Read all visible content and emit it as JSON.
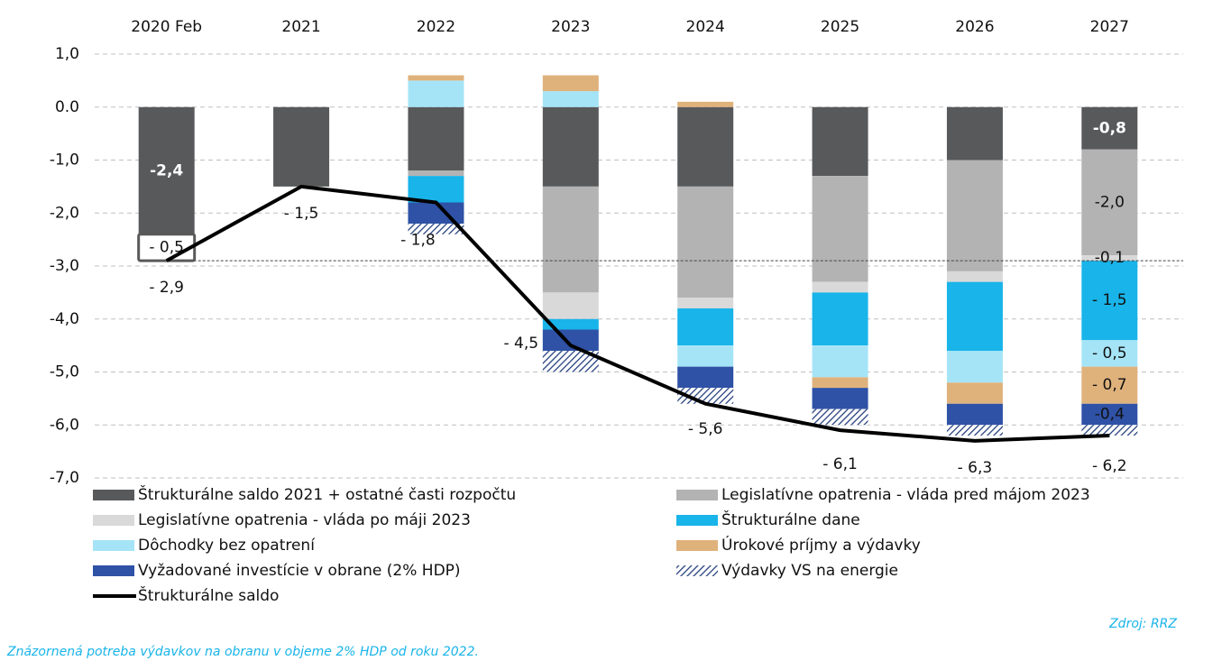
{
  "chart_data": {
    "type": "stacked-bar-line",
    "categories": [
      "2020 Feb",
      "2021",
      "2022",
      "2023",
      "2024",
      "2025",
      "2026",
      "2027"
    ],
    "ylim": [
      -7,
      1
    ],
    "yticks": [
      {
        "value": 1,
        "label": "1,0"
      },
      {
        "value": 0,
        "label": "0.0"
      },
      {
        "value": -1,
        "label": "-1,0"
      },
      {
        "value": -2,
        "label": "-2,0"
      },
      {
        "value": -3,
        "label": "-3,0"
      },
      {
        "value": -4,
        "label": "-4,0"
      },
      {
        "value": -5,
        "label": "-5,0"
      },
      {
        "value": -6,
        "label": "-6,0"
      },
      {
        "value": -7,
        "label": "-7,0"
      }
    ],
    "grid": true,
    "series": [
      {
        "name": "Štrukturálne saldo 2021 + ostatné časti rozpočtu",
        "color": "#58595b",
        "values": [
          -2.4,
          -1.5,
          -1.2,
          -1.5,
          -1.5,
          -1.3,
          -1.0,
          -0.8
        ],
        "value_labels": [
          "-2,4",
          null,
          null,
          null,
          null,
          null,
          null,
          "-0,8"
        ]
      },
      {
        "name": "Legislatívne opatrenia - vláda pred májom 2023",
        "color": "#b3b3b3",
        "values": [
          0,
          0,
          -0.1,
          -2.0,
          -2.1,
          -2.0,
          -2.1,
          -2.0
        ],
        "value_labels": [
          null,
          null,
          null,
          null,
          null,
          null,
          null,
          "-2,0"
        ]
      },
      {
        "name": "Legislatívne opatrenia - vláda po máji 2023",
        "color": "#d9d9d9",
        "values": [
          0,
          0,
          0,
          -0.5,
          -0.2,
          -0.2,
          -0.2,
          -0.1
        ],
        "value_labels": [
          null,
          null,
          null,
          null,
          null,
          null,
          null,
          "-0,1"
        ]
      },
      {
        "name": "Štrukturálne dane",
        "color": "#19b4e9",
        "values": [
          0,
          0,
          -0.5,
          -0.2,
          -0.7,
          -1.0,
          -1.3,
          -1.5
        ],
        "value_labels": [
          null,
          null,
          null,
          null,
          null,
          null,
          null,
          "- 1,5"
        ]
      },
      {
        "name": "Dôchodky bez opatrení",
        "color": "#a5e4f7",
        "values": [
          0,
          0,
          0.5,
          0.3,
          -0.4,
          -0.6,
          -0.6,
          -0.5
        ],
        "value_labels": [
          null,
          null,
          null,
          null,
          null,
          null,
          null,
          "- 0,5"
        ]
      },
      {
        "name": "Úrokové príjmy a výdavky",
        "color": "#dfb27c",
        "values": [
          0,
          0,
          0.1,
          0.3,
          0.1,
          -0.2,
          -0.4,
          -0.7
        ],
        "value_labels": [
          null,
          null,
          null,
          null,
          null,
          null,
          null,
          "- 0,7"
        ]
      },
      {
        "name": "Vyžadované investície v obrane (2% HDP)",
        "color": "#2f52a6",
        "values": [
          0,
          0,
          -0.4,
          -0.4,
          -0.4,
          -0.4,
          -0.4,
          -0.4
        ],
        "value_labels": [
          null,
          null,
          null,
          null,
          null,
          null,
          null,
          "-0,4"
        ]
      },
      {
        "name": "Výdavky VS na energie",
        "color": "#1f3a7a",
        "pattern": "hatch",
        "values": [
          0,
          0,
          -0.2,
          -0.4,
          -0.3,
          -0.3,
          -0.2,
          -0.2
        ]
      },
      {
        "name": "Štrukturálne saldo",
        "type": "line",
        "color": "#000000",
        "values": [
          -2.9,
          -1.5,
          -1.8,
          -4.5,
          -5.6,
          -6.1,
          -6.3,
          -6.2
        ],
        "value_labels": [
          "- 2,9",
          "- 1,5",
          "- 1,8",
          "- 4,5",
          "- 5,6",
          "- 6,1",
          "- 6,3",
          "- 6,2"
        ]
      }
    ],
    "annotation": "- 0,5",
    "source": "Zdroj: RRZ",
    "footnote": "Znázornená potreba výdavkov na obranu v objeme 2% HDP od roku 2022."
  }
}
